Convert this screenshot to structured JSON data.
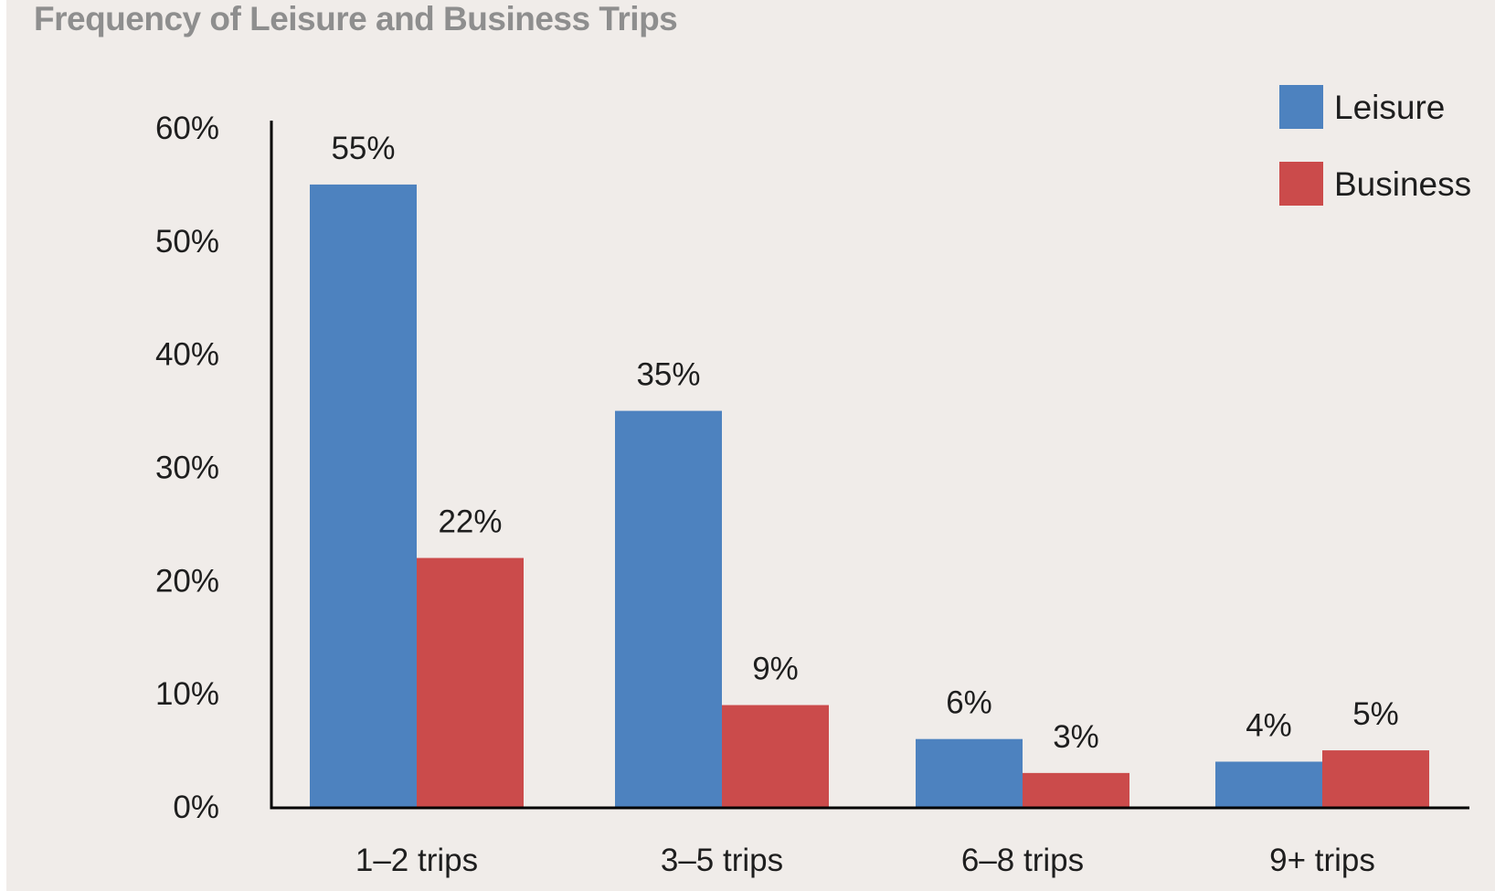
{
  "chart_data": {
    "type": "bar",
    "title": "Frequency of Leisure and Business Trips",
    "xlabel": "",
    "ylabel": "",
    "categories": [
      "1–2 trips",
      "3–5 trips",
      "6–8 trips",
      "9+ trips"
    ],
    "series": [
      {
        "name": "Leisure",
        "color": "#4d82bf",
        "values": [
          55,
          35,
          6,
          4
        ],
        "labels": [
          "55%",
          "35%",
          "6%",
          "4%"
        ]
      },
      {
        "name": "Business",
        "color": "#cb4b4b",
        "values": [
          22,
          9,
          3,
          5
        ],
        "labels": [
          "22%",
          "9%",
          "3%",
          "5%"
        ]
      }
    ],
    "ylim": [
      0,
      60
    ],
    "yticks": [
      0,
      10,
      20,
      30,
      40,
      50,
      60
    ],
    "ytick_labels": [
      "0%",
      "10%",
      "20%",
      "30%",
      "40%",
      "50%",
      "60%"
    ],
    "grid": false,
    "legend_position": "top-right",
    "colors": {
      "background": "#f0ece9",
      "title": "#8e8e8e",
      "axis": "#000000",
      "text": "#1e1e1e"
    }
  }
}
